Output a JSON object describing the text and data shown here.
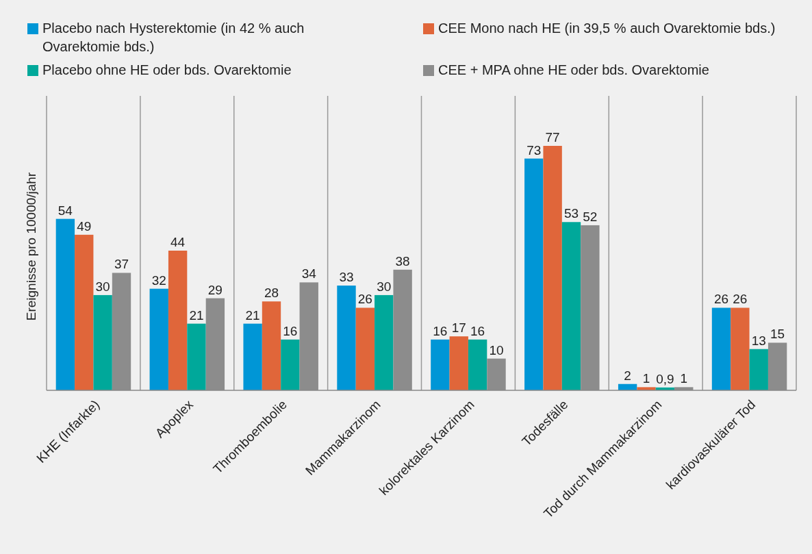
{
  "chart_data": {
    "type": "bar",
    "ylabel": "Ereignisse pro 10000/jahr",
    "categories": [
      "KHE (Infarkte)",
      "Apoplex",
      "Thromboembolie",
      "Mammakarzinom",
      "kolorektales Karzinom",
      "Todesfälle",
      "Tod durch Mammakarzinom",
      "kardiovaskulärer Tod"
    ],
    "series": [
      {
        "name": "Placebo nach Hysterektomie (in 42 % auch Ovarektomie bds.)",
        "color": "#0096d6",
        "values": [
          54,
          32,
          21,
          33,
          16,
          73,
          2,
          26
        ],
        "value_labels": [
          "54",
          "32",
          "21",
          "33",
          "16",
          "73",
          "2",
          "26"
        ]
      },
      {
        "name": "CEE Mono nach HE (in 39,5 % auch Ovarektomie bds.)",
        "color": "#e0663a",
        "values": [
          49,
          44,
          28,
          26,
          17,
          77,
          1,
          26
        ],
        "value_labels": [
          "49",
          "44",
          "28",
          "26",
          "17",
          "77",
          "1",
          "26"
        ]
      },
      {
        "name": "Placebo ohne HE oder bds. Ovarektomie",
        "color": "#00a89a",
        "values": [
          30,
          21,
          16,
          30,
          16,
          53,
          0.9,
          13
        ],
        "value_labels": [
          "30",
          "21",
          "16",
          "30",
          "16",
          "53",
          "0,9",
          "13"
        ]
      },
      {
        "name": "CEE + MPA ohne HE oder bds. Ovarektomie",
        "color": "#8c8c8c",
        "values": [
          37,
          29,
          34,
          38,
          10,
          52,
          1,
          15
        ],
        "value_labels": [
          "37",
          "29",
          "34",
          "38",
          "10",
          "52",
          "1",
          "15"
        ]
      }
    ],
    "grid": "x",
    "legend": "top"
  }
}
